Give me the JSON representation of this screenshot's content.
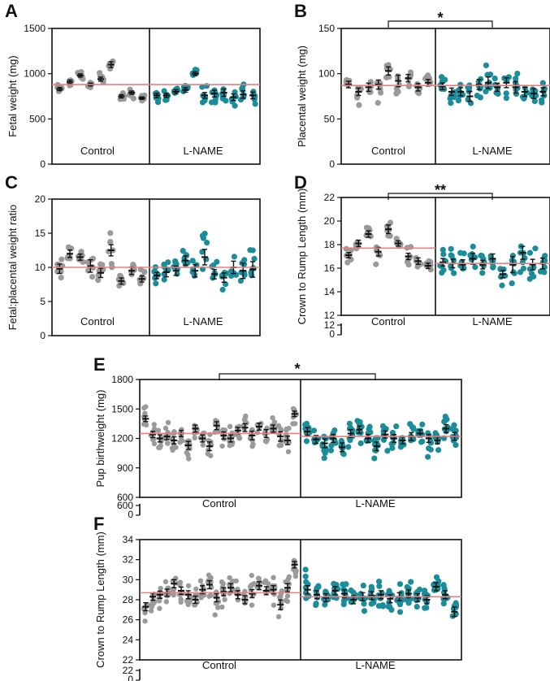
{
  "colors": {
    "control": "#9a9a9a",
    "lname": "#1a8c9a",
    "mean_line": "#e87f7f",
    "axis": "#111111"
  },
  "chart_data": [
    {
      "panel": "A",
      "type": "scatter",
      "ylabel": "Fetal weight (mg)",
      "ylim": [
        0,
        1500
      ],
      "yticks": [
        0,
        500,
        1000,
        1500
      ],
      "groups": [
        "Control",
        "L-NAME"
      ],
      "overall_mean": 880,
      "significance": "",
      "litters": [
        {
          "group": 0,
          "mean": 830,
          "sd": 40,
          "n": 7
        },
        {
          "group": 0,
          "mean": 910,
          "sd": 45,
          "n": 7
        },
        {
          "group": 0,
          "mean": 980,
          "sd": 40,
          "n": 7
        },
        {
          "group": 0,
          "mean": 880,
          "sd": 35,
          "n": 7
        },
        {
          "group": 0,
          "mean": 940,
          "sd": 50,
          "n": 7
        },
        {
          "group": 0,
          "mean": 1100,
          "sd": 70,
          "n": 7
        },
        {
          "group": 0,
          "mean": 750,
          "sd": 40,
          "n": 7
        },
        {
          "group": 0,
          "mean": 790,
          "sd": 40,
          "n": 7
        },
        {
          "group": 0,
          "mean": 730,
          "sd": 30,
          "n": 7
        },
        {
          "group": 1,
          "mean": 760,
          "sd": 55,
          "n": 7
        },
        {
          "group": 1,
          "mean": 760,
          "sd": 50,
          "n": 7
        },
        {
          "group": 1,
          "mean": 800,
          "sd": 50,
          "n": 7
        },
        {
          "group": 1,
          "mean": 820,
          "sd": 55,
          "n": 7
        },
        {
          "group": 1,
          "mean": 1000,
          "sd": 45,
          "n": 7
        },
        {
          "group": 1,
          "mean": 760,
          "sd": 70,
          "n": 7
        },
        {
          "group": 1,
          "mean": 780,
          "sd": 80,
          "n": 7
        },
        {
          "group": 1,
          "mean": 790,
          "sd": 90,
          "n": 7
        },
        {
          "group": 1,
          "mean": 740,
          "sd": 80,
          "n": 7
        },
        {
          "group": 1,
          "mean": 770,
          "sd": 90,
          "n": 7
        },
        {
          "group": 1,
          "mean": 760,
          "sd": 80,
          "n": 7
        }
      ]
    },
    {
      "panel": "B",
      "type": "scatter",
      "ylabel": "Placental weight (mg)",
      "ylim": [
        0,
        150
      ],
      "yticks": [
        0,
        50,
        100,
        150
      ],
      "groups": [
        "Control",
        "L-NAME"
      ],
      "overall_mean": 87,
      "significance": "*",
      "litters": [
        {
          "group": 0,
          "mean": 88,
          "sd": 8,
          "n": 7
        },
        {
          "group": 0,
          "mean": 80,
          "sd": 9,
          "n": 7
        },
        {
          "group": 0,
          "mean": 85,
          "sd": 10,
          "n": 7
        },
        {
          "group": 0,
          "mean": 88,
          "sd": 11,
          "n": 7
        },
        {
          "group": 0,
          "mean": 103,
          "sd": 10,
          "n": 7
        },
        {
          "group": 0,
          "mean": 92,
          "sd": 14,
          "n": 7
        },
        {
          "group": 0,
          "mean": 95,
          "sd": 9,
          "n": 7
        },
        {
          "group": 0,
          "mean": 85,
          "sd": 9,
          "n": 7
        },
        {
          "group": 0,
          "mean": 90,
          "sd": 8,
          "n": 7
        },
        {
          "group": 1,
          "mean": 86,
          "sd": 8,
          "n": 7
        },
        {
          "group": 1,
          "mean": 80,
          "sd": 9,
          "n": 7
        },
        {
          "group": 1,
          "mean": 80,
          "sd": 10,
          "n": 7
        },
        {
          "group": 1,
          "mean": 75,
          "sd": 12,
          "n": 7
        },
        {
          "group": 1,
          "mean": 88,
          "sd": 12,
          "n": 7
        },
        {
          "group": 1,
          "mean": 90,
          "sd": 14,
          "n": 7
        },
        {
          "group": 1,
          "mean": 85,
          "sd": 10,
          "n": 7
        },
        {
          "group": 1,
          "mean": 90,
          "sd": 12,
          "n": 7
        },
        {
          "group": 1,
          "mean": 85,
          "sd": 14,
          "n": 7
        },
        {
          "group": 1,
          "mean": 80,
          "sd": 11,
          "n": 7
        },
        {
          "group": 1,
          "mean": 78,
          "sd": 12,
          "n": 7
        },
        {
          "group": 1,
          "mean": 80,
          "sd": 10,
          "n": 7
        }
      ]
    },
    {
      "panel": "C",
      "type": "scatter",
      "ylabel": "Fetal:placental weight ratio",
      "ylim": [
        0,
        20
      ],
      "yticks": [
        0,
        5,
        10,
        15,
        20
      ],
      "groups": [
        "Control",
        "L-NAME"
      ],
      "overall_mean": 10,
      "significance": "",
      "litters": [
        {
          "group": 0,
          "mean": 9.8,
          "sd": 1.5,
          "n": 7
        },
        {
          "group": 0,
          "mean": 12,
          "sd": 1.2,
          "n": 7
        },
        {
          "group": 0,
          "mean": 11.5,
          "sd": 1,
          "n": 7
        },
        {
          "group": 0,
          "mean": 10.2,
          "sd": 2,
          "n": 7
        },
        {
          "group": 0,
          "mean": 9.2,
          "sd": 1.5,
          "n": 7
        },
        {
          "group": 0,
          "mean": 12.5,
          "sd": 1.8,
          "n": 7
        },
        {
          "group": 0,
          "mean": 8,
          "sd": 1,
          "n": 7
        },
        {
          "group": 0,
          "mean": 9.5,
          "sd": 1.2,
          "n": 7
        },
        {
          "group": 0,
          "mean": 8.3,
          "sd": 1,
          "n": 7
        },
        {
          "group": 1,
          "mean": 8.8,
          "sd": 1,
          "n": 7
        },
        {
          "group": 1,
          "mean": 9.3,
          "sd": 1.5,
          "n": 7
        },
        {
          "group": 1,
          "mean": 9.5,
          "sd": 1.5,
          "n": 7
        },
        {
          "group": 1,
          "mean": 11,
          "sd": 1.5,
          "n": 7
        },
        {
          "group": 1,
          "mean": 9.5,
          "sd": 2,
          "n": 7
        },
        {
          "group": 1,
          "mean": 11.5,
          "sd": 2.5,
          "n": 7
        },
        {
          "group": 1,
          "mean": 9,
          "sd": 1.5,
          "n": 7
        },
        {
          "group": 1,
          "mean": 8.5,
          "sd": 1.5,
          "n": 7
        },
        {
          "group": 1,
          "mean": 10,
          "sd": 2,
          "n": 7
        },
        {
          "group": 1,
          "mean": 9.5,
          "sd": 2.5,
          "n": 7
        },
        {
          "group": 1,
          "mean": 9.7,
          "sd": 2.5,
          "n": 7
        }
      ]
    },
    {
      "panel": "D",
      "type": "scatter",
      "ylabel": "Crown to Rump Length (mm)",
      "ylim": [
        12,
        22
      ],
      "yticks": [
        12,
        14,
        16,
        18,
        20,
        22
      ],
      "break_ticks": [
        0,
        12
      ],
      "groups": [
        "Control",
        "L-NAME"
      ],
      "overall_mean": 17.7,
      "second_mean": 16.4,
      "significance": "**",
      "litters": [
        {
          "group": 0,
          "mean": 17.1,
          "sd": 0.5,
          "n": 7
        },
        {
          "group": 0,
          "mean": 18.1,
          "sd": 0.6,
          "n": 7
        },
        {
          "group": 0,
          "mean": 18.9,
          "sd": 0.6,
          "n": 7
        },
        {
          "group": 0,
          "mean": 17.4,
          "sd": 0.8,
          "n": 7
        },
        {
          "group": 0,
          "mean": 19.3,
          "sd": 0.8,
          "n": 7
        },
        {
          "group": 0,
          "mean": 18.1,
          "sd": 0.5,
          "n": 7
        },
        {
          "group": 0,
          "mean": 17,
          "sd": 0.6,
          "n": 7
        },
        {
          "group": 0,
          "mean": 16.6,
          "sd": 0.6,
          "n": 7
        },
        {
          "group": 0,
          "mean": 16.2,
          "sd": 0.5,
          "n": 7
        },
        {
          "group": 1,
          "mean": 16.5,
          "sd": 0.7,
          "n": 7
        },
        {
          "group": 1,
          "mean": 16.4,
          "sd": 0.8,
          "n": 7
        },
        {
          "group": 1,
          "mean": 16.3,
          "sd": 0.9,
          "n": 7
        },
        {
          "group": 1,
          "mean": 16.8,
          "sd": 1,
          "n": 7
        },
        {
          "group": 1,
          "mean": 16.3,
          "sd": 0.8,
          "n": 7
        },
        {
          "group": 1,
          "mean": 16.8,
          "sd": 0.9,
          "n": 7
        },
        {
          "group": 1,
          "mean": 15.5,
          "sd": 0.7,
          "n": 7
        },
        {
          "group": 1,
          "mean": 16.3,
          "sd": 1.5,
          "n": 7
        },
        {
          "group": 1,
          "mean": 17.3,
          "sd": 1.2,
          "n": 7
        },
        {
          "group": 1,
          "mean": 16.3,
          "sd": 1,
          "n": 7
        },
        {
          "group": 1,
          "mean": 16.4,
          "sd": 1,
          "n": 7
        }
      ]
    },
    {
      "panel": "E",
      "type": "scatter",
      "ylabel": "Pup birthweight (mg)",
      "ylim": [
        600,
        1800
      ],
      "yticks": [
        600,
        900,
        1200,
        1500,
        1800
      ],
      "break_ticks": [
        0,
        600
      ],
      "groups": [
        "Control",
        "L-NAME"
      ],
      "overall_mean": 1250,
      "second_mean": 1220,
      "significance": "*",
      "litters": [
        {
          "group": 0,
          "mean": 1400,
          "sd": 70,
          "n": 9
        },
        {
          "group": 0,
          "mean": 1240,
          "sd": 80,
          "n": 9
        },
        {
          "group": 0,
          "mean": 1200,
          "sd": 90,
          "n": 9
        },
        {
          "group": 0,
          "mean": 1220,
          "sd": 80,
          "n": 9
        },
        {
          "group": 0,
          "mean": 1180,
          "sd": 90,
          "n": 9
        },
        {
          "group": 0,
          "mean": 1250,
          "sd": 80,
          "n": 9
        },
        {
          "group": 0,
          "mean": 1130,
          "sd": 100,
          "n": 9
        },
        {
          "group": 0,
          "mean": 1300,
          "sd": 90,
          "n": 9
        },
        {
          "group": 0,
          "mean": 1200,
          "sd": 90,
          "n": 9
        },
        {
          "group": 0,
          "mean": 1120,
          "sd": 110,
          "n": 9
        },
        {
          "group": 0,
          "mean": 1330,
          "sd": 100,
          "n": 9
        },
        {
          "group": 0,
          "mean": 1230,
          "sd": 90,
          "n": 9
        },
        {
          "group": 0,
          "mean": 1200,
          "sd": 90,
          "n": 9
        },
        {
          "group": 0,
          "mean": 1280,
          "sd": 80,
          "n": 9
        },
        {
          "group": 0,
          "mean": 1310,
          "sd": 100,
          "n": 9
        },
        {
          "group": 0,
          "mean": 1230,
          "sd": 110,
          "n": 9
        },
        {
          "group": 0,
          "mean": 1320,
          "sd": 90,
          "n": 9
        },
        {
          "group": 0,
          "mean": 1250,
          "sd": 100,
          "n": 9
        },
        {
          "group": 0,
          "mean": 1300,
          "sd": 90,
          "n": 9
        },
        {
          "group": 0,
          "mean": 1220,
          "sd": 120,
          "n": 9
        },
        {
          "group": 0,
          "mean": 1180,
          "sd": 110,
          "n": 9
        },
        {
          "group": 0,
          "mean": 1450,
          "sd": 70,
          "n": 9
        },
        {
          "group": 1,
          "mean": 1270,
          "sd": 100,
          "n": 9
        },
        {
          "group": 1,
          "mean": 1190,
          "sd": 100,
          "n": 9
        },
        {
          "group": 1,
          "mean": 1150,
          "sd": 110,
          "n": 9
        },
        {
          "group": 1,
          "mean": 1200,
          "sd": 100,
          "n": 9
        },
        {
          "group": 1,
          "mean": 1110,
          "sd": 110,
          "n": 9
        },
        {
          "group": 1,
          "mean": 1250,
          "sd": 100,
          "n": 9
        },
        {
          "group": 1,
          "mean": 1290,
          "sd": 90,
          "n": 9
        },
        {
          "group": 1,
          "mean": 1200,
          "sd": 100,
          "n": 9
        },
        {
          "group": 1,
          "mean": 1120,
          "sd": 110,
          "n": 9
        },
        {
          "group": 1,
          "mean": 1240,
          "sd": 90,
          "n": 9
        },
        {
          "group": 1,
          "mean": 1200,
          "sd": 100,
          "n": 9
        },
        {
          "group": 1,
          "mean": 1180,
          "sd": 90,
          "n": 9
        },
        {
          "group": 1,
          "mean": 1220,
          "sd": 100,
          "n": 9
        },
        {
          "group": 1,
          "mean": 1250,
          "sd": 90,
          "n": 9
        },
        {
          "group": 1,
          "mean": 1200,
          "sd": 100,
          "n": 9
        },
        {
          "group": 1,
          "mean": 1180,
          "sd": 90,
          "n": 9
        },
        {
          "group": 1,
          "mean": 1300,
          "sd": 100,
          "n": 9
        },
        {
          "group": 1,
          "mean": 1220,
          "sd": 100,
          "n": 9
        }
      ]
    },
    {
      "panel": "F",
      "type": "scatter",
      "ylabel": "Crown to Rump Length (mm)",
      "ylim": [
        22,
        34
      ],
      "yticks": [
        22,
        24,
        26,
        28,
        30,
        32,
        34
      ],
      "break_ticks": [
        0,
        22
      ],
      "groups": [
        "Control",
        "L-NAME"
      ],
      "overall_mean": 28.7,
      "second_mean": 28.3,
      "significance": "",
      "litters": [
        {
          "group": 0,
          "mean": 27.3,
          "sd": 1,
          "n": 9
        },
        {
          "group": 0,
          "mean": 28.3,
          "sd": 0.9,
          "n": 9
        },
        {
          "group": 0,
          "mean": 28.5,
          "sd": 0.9,
          "n": 9
        },
        {
          "group": 0,
          "mean": 28.7,
          "sd": 0.9,
          "n": 9
        },
        {
          "group": 0,
          "mean": 29.6,
          "sd": 1,
          "n": 9
        },
        {
          "group": 0,
          "mean": 28.9,
          "sd": 0.9,
          "n": 9
        },
        {
          "group": 0,
          "mean": 28.5,
          "sd": 1,
          "n": 9
        },
        {
          "group": 0,
          "mean": 28.0,
          "sd": 0.9,
          "n": 9
        },
        {
          "group": 0,
          "mean": 29.0,
          "sd": 1,
          "n": 9
        },
        {
          "group": 0,
          "mean": 29.5,
          "sd": 1,
          "n": 9
        },
        {
          "group": 0,
          "mean": 28.2,
          "sd": 1,
          "n": 9
        },
        {
          "group": 0,
          "mean": 28.8,
          "sd": 1,
          "n": 9
        },
        {
          "group": 0,
          "mean": 29.2,
          "sd": 1,
          "n": 9
        },
        {
          "group": 0,
          "mean": 28.5,
          "sd": 1,
          "n": 9
        },
        {
          "group": 0,
          "mean": 28.0,
          "sd": 1,
          "n": 9
        },
        {
          "group": 0,
          "mean": 28.6,
          "sd": 1,
          "n": 9
        },
        {
          "group": 0,
          "mean": 29.4,
          "sd": 1,
          "n": 9
        },
        {
          "group": 0,
          "mean": 28.9,
          "sd": 1,
          "n": 9
        },
        {
          "group": 0,
          "mean": 29.0,
          "sd": 1,
          "n": 9
        },
        {
          "group": 0,
          "mean": 27.5,
          "sd": 1.2,
          "n": 9
        },
        {
          "group": 0,
          "mean": 29.2,
          "sd": 1,
          "n": 9
        },
        {
          "group": 0,
          "mean": 31.5,
          "sd": 0.8,
          "n": 9
        },
        {
          "group": 1,
          "mean": 29.0,
          "sd": 1,
          "n": 9
        },
        {
          "group": 1,
          "mean": 28.5,
          "sd": 1,
          "n": 9
        },
        {
          "group": 1,
          "mean": 28.2,
          "sd": 1,
          "n": 9
        },
        {
          "group": 1,
          "mean": 28.9,
          "sd": 1,
          "n": 9
        },
        {
          "group": 1,
          "mean": 28.6,
          "sd": 1,
          "n": 9
        },
        {
          "group": 1,
          "mean": 28.0,
          "sd": 1,
          "n": 9
        },
        {
          "group": 1,
          "mean": 28.3,
          "sd": 1,
          "n": 9
        },
        {
          "group": 1,
          "mean": 28.4,
          "sd": 1,
          "n": 9
        },
        {
          "group": 1,
          "mean": 28.5,
          "sd": 1,
          "n": 9
        },
        {
          "group": 1,
          "mean": 28.1,
          "sd": 1,
          "n": 9
        },
        {
          "group": 1,
          "mean": 28.3,
          "sd": 1,
          "n": 9
        },
        {
          "group": 1,
          "mean": 28.6,
          "sd": 1,
          "n": 9
        },
        {
          "group": 1,
          "mean": 28.2,
          "sd": 1,
          "n": 9
        },
        {
          "group": 1,
          "mean": 28.0,
          "sd": 1,
          "n": 9
        },
        {
          "group": 1,
          "mean": 29.3,
          "sd": 1,
          "n": 9
        },
        {
          "group": 1,
          "mean": 28.5,
          "sd": 1,
          "n": 9
        },
        {
          "group": 1,
          "mean": 26.8,
          "sd": 1.2,
          "n": 9
        }
      ]
    }
  ]
}
